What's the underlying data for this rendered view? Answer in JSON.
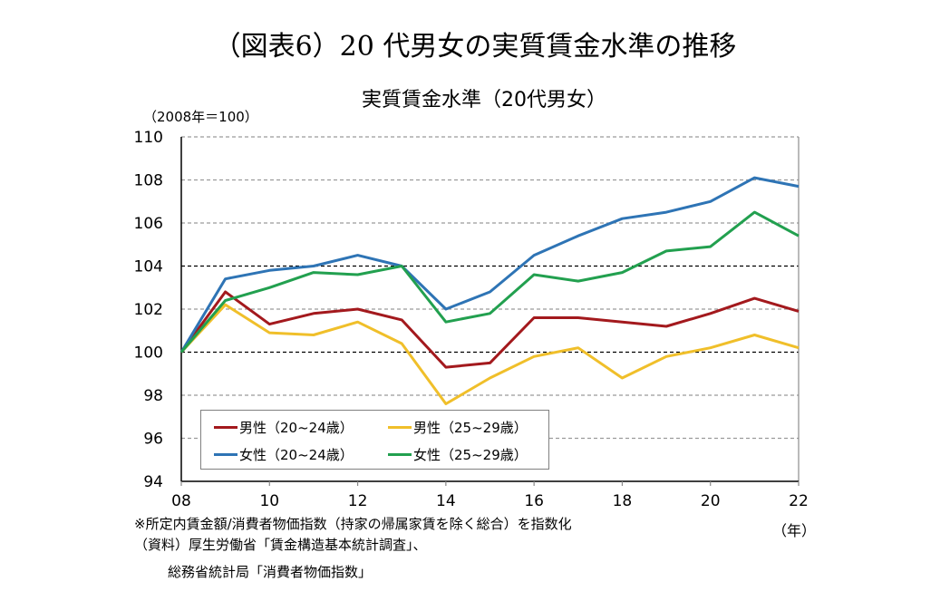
{
  "header": {
    "main_title": "（図表6）20 代男女の実質賃金水準の推移"
  },
  "chart_data": {
    "type": "line",
    "title": "実質賃金水準（20代男女）",
    "ylabel": "（2008年＝100）",
    "xlabel": "（年）",
    "ylim": [
      94,
      110
    ],
    "yticks": [
      94,
      96,
      98,
      100,
      102,
      104,
      106,
      108,
      110
    ],
    "ytick_labels": [
      "94",
      "96",
      "98",
      "100",
      "102",
      "104",
      "106",
      "108",
      "110"
    ],
    "grid": true,
    "grid_emphasis": [
      100,
      104
    ],
    "x": [
      2008,
      2009,
      2010,
      2011,
      2012,
      2013,
      2014,
      2015,
      2016,
      2017,
      2018,
      2019,
      2020,
      2021,
      2022
    ],
    "xlim": [
      2008,
      2022
    ],
    "xticks": [
      2008,
      2010,
      2012,
      2014,
      2016,
      2018,
      2020,
      2022
    ],
    "xtick_labels": [
      "08",
      "10",
      "12",
      "14",
      "16",
      "18",
      "20",
      "22"
    ],
    "legend_position": "bottom-left",
    "series": [
      {
        "name": "男性（20~24歳）",
        "color": "#a3191d",
        "values": [
          100.0,
          102.8,
          101.3,
          101.8,
          102.0,
          101.5,
          99.3,
          99.5,
          101.6,
          101.6,
          101.4,
          101.2,
          101.8,
          102.5,
          101.9
        ]
      },
      {
        "name": "男性（25~29歳）",
        "color": "#f0bf2a",
        "values": [
          100.0,
          102.2,
          100.9,
          100.8,
          101.4,
          100.4,
          97.6,
          98.8,
          99.8,
          100.2,
          98.8,
          99.8,
          100.2,
          100.8,
          100.2
        ]
      },
      {
        "name": "女性（20~24歳）",
        "color": "#2e74b5",
        "values": [
          100.0,
          103.4,
          103.8,
          104.0,
          104.5,
          104.0,
          102.0,
          102.8,
          104.5,
          105.4,
          106.2,
          106.5,
          107.0,
          108.1,
          107.7
        ]
      },
      {
        "name": "女性（25~29歳）",
        "color": "#22a04f",
        "values": [
          100.0,
          102.4,
          103.0,
          103.7,
          103.6,
          104.0,
          101.4,
          101.8,
          103.6,
          103.3,
          103.7,
          104.7,
          104.9,
          106.5,
          105.4
        ]
      }
    ]
  },
  "notes": {
    "line1": "※所定内賃金額/消費者物価指数（持家の帰属家賃を除く総合）を指数化",
    "line2": "（資料）厚生労働省「賃金構造基本統計調査」、",
    "line3": "総務省統計局「消費者物価指数」"
  }
}
